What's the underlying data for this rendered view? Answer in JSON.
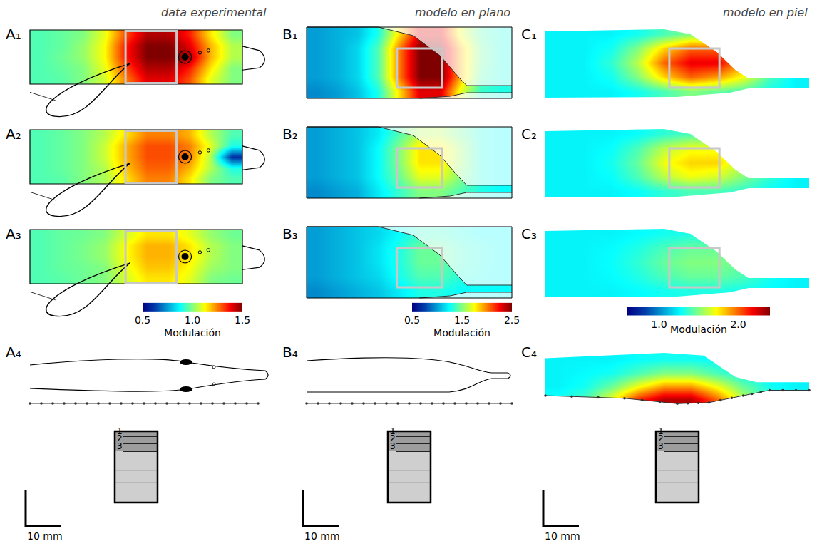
{
  "chart_data": [
    {
      "type": "heatmap",
      "subtitle": "data experimental",
      "color": "Jet",
      "tick_labels": false,
      "colorbar": {
        "title": "Modulación",
        "range": [
          0.5,
          1.5
        ],
        "ticks": [
          0.5,
          {
            "value": 1,
            "label": "1.0"
          },
          1.5
        ]
      },
      "scale_bar": "10 mm",
      "levels": [
        "1",
        "2",
        "3"
      ],
      "panels": [
        {
          "title": "A₁",
          "cells": [
            [
              0.95,
              0.97,
              1.0,
              1.1,
              1.3,
              1.45,
              1.45,
              1.35,
              1.15,
              1.0
            ],
            [
              0.95,
              0.97,
              1.02,
              1.12,
              1.35,
              1.5,
              1.5,
              1.4,
              1.2,
              1.05
            ],
            [
              0.95,
              0.98,
              1.02,
              1.12,
              1.35,
              1.5,
              1.5,
              1.45,
              1.2,
              1.05
            ],
            [
              0.95,
              0.97,
              1.0,
              1.1,
              1.3,
              1.45,
              1.45,
              1.35,
              1.15,
              1.0
            ],
            [
              0.95,
              0.96,
              1.0,
              1.08,
              1.25,
              1.4,
              1.4,
              1.3,
              1.1,
              1.0
            ]
          ]
        },
        {
          "title": "A₂",
          "cells": [
            [
              0.95,
              0.97,
              1.0,
              1.05,
              1.15,
              1.25,
              1.25,
              1.2,
              1.05,
              0.95
            ],
            [
              0.95,
              0.97,
              1.0,
              1.07,
              1.2,
              1.3,
              1.3,
              1.25,
              1.1,
              0.9
            ],
            [
              0.95,
              0.97,
              1.0,
              1.07,
              1.2,
              1.3,
              1.3,
              1.25,
              1.05,
              0.6
            ],
            [
              0.95,
              0.97,
              1.0,
              1.05,
              1.18,
              1.28,
              1.28,
              1.2,
              1.05,
              0.9
            ],
            [
              0.95,
              0.96,
              1.0,
              1.04,
              1.15,
              1.25,
              1.25,
              1.15,
              1.0,
              0.95
            ]
          ]
        },
        {
          "title": "A₃",
          "cells": [
            [
              0.95,
              0.97,
              0.98,
              1.0,
              1.08,
              1.15,
              1.15,
              1.1,
              1.02,
              0.98
            ],
            [
              0.95,
              0.97,
              0.99,
              1.02,
              1.12,
              1.2,
              1.2,
              1.15,
              1.05,
              1.0
            ],
            [
              0.95,
              0.97,
              0.99,
              1.02,
              1.12,
              1.2,
              1.2,
              1.15,
              1.05,
              1.0
            ],
            [
              0.95,
              0.97,
              0.98,
              1.0,
              1.1,
              1.18,
              1.18,
              1.12,
              1.03,
              1.0
            ],
            [
              0.95,
              0.96,
              0.98,
              1.0,
              1.08,
              1.15,
              1.15,
              1.1,
              1.0,
              0.98
            ]
          ]
        },
        {
          "title": "A₄"
        }
      ]
    },
    {
      "type": "heatmap",
      "subtitle": "modelo en plano",
      "color": "Jet",
      "tick_labels": false,
      "colorbar": {
        "title": "Modulación",
        "range": [
          0.5,
          2.5
        ],
        "ticks": [
          0.5,
          1.5,
          2.5
        ]
      },
      "scale_bar": "10 mm",
      "levels": [
        "1",
        "2",
        "3"
      ],
      "panels": [
        {
          "title": "B₁",
          "cells": [
            [
              1.0,
              1.05,
              1.1,
              1.3,
              1.8,
              2.3,
              2.3,
              1.7,
              1.4,
              1.3
            ],
            [
              1.0,
              1.05,
              1.15,
              1.4,
              2.0,
              2.5,
              2.5,
              1.9,
              1.45,
              1.3
            ],
            [
              1.0,
              1.05,
              1.15,
              1.4,
              2.0,
              2.5,
              2.5,
              1.9,
              1.45,
              1.3
            ],
            [
              1.0,
              1.05,
              1.15,
              1.4,
              2.0,
              2.5,
              2.5,
              1.9,
              1.4,
              1.3
            ],
            [
              0.95,
              1.0,
              1.1,
              1.3,
              1.8,
              2.3,
              2.3,
              1.7,
              1.35,
              1.3
            ]
          ]
        },
        {
          "title": "B₂",
          "cells": [
            [
              1.0,
              1.05,
              1.1,
              1.2,
              1.4,
              1.6,
              1.6,
              1.45,
              1.3,
              1.25
            ],
            [
              1.0,
              1.05,
              1.1,
              1.25,
              1.5,
              1.8,
              1.8,
              1.55,
              1.3,
              1.25
            ],
            [
              1.0,
              1.05,
              1.1,
              1.25,
              1.5,
              1.8,
              1.8,
              1.55,
              1.3,
              1.25
            ],
            [
              1.0,
              1.05,
              1.1,
              1.25,
              1.45,
              1.7,
              1.7,
              1.5,
              1.3,
              1.25
            ],
            [
              0.95,
              1.0,
              1.05,
              1.2,
              1.35,
              1.5,
              1.5,
              1.4,
              1.3,
              1.25
            ]
          ]
        },
        {
          "title": "B₃",
          "cells": [
            [
              1.0,
              1.05,
              1.1,
              1.15,
              1.25,
              1.35,
              1.35,
              1.3,
              1.25,
              1.25
            ],
            [
              1.0,
              1.05,
              1.1,
              1.18,
              1.3,
              1.45,
              1.45,
              1.35,
              1.3,
              1.25
            ],
            [
              1.0,
              1.05,
              1.1,
              1.18,
              1.3,
              1.45,
              1.45,
              1.35,
              1.3,
              1.25
            ],
            [
              1.0,
              1.05,
              1.1,
              1.15,
              1.28,
              1.4,
              1.4,
              1.32,
              1.28,
              1.25
            ],
            [
              0.95,
              1.0,
              1.05,
              1.1,
              1.2,
              1.3,
              1.3,
              1.25,
              1.25,
              1.25
            ]
          ]
        },
        {
          "title": "B₄"
        }
      ]
    },
    {
      "type": "heatmap",
      "subtitle": "modelo en piel",
      "color": "Jet",
      "tick_labels": false,
      "colorbar": {
        "title": "Modulación",
        "range": [
          0.6,
          2.4
        ],
        "ticks": [
          {
            "value": 1,
            "label": "1.0"
          },
          {
            "value": 2,
            "label": "2.0"
          }
        ]
      },
      "scale_bar": "10 mm",
      "levels": [
        "1",
        "2",
        "3"
      ],
      "panels": [
        {
          "title": "C₁",
          "cells": [
            [
              1.25,
              1.25,
              1.25,
              1.3,
              1.4,
              1.5,
              1.5,
              1.4,
              1.3,
              1.25
            ],
            [
              1.25,
              1.25,
              1.3,
              1.5,
              1.8,
              2.0,
              2.0,
              1.8,
              1.4,
              1.25
            ],
            [
              1.25,
              1.25,
              1.35,
              1.6,
              2.0,
              2.2,
              2.2,
              1.9,
              1.5,
              1.25
            ],
            [
              1.25,
              1.25,
              1.3,
              1.5,
              1.8,
              2.0,
              1.9,
              1.7,
              1.4,
              1.25
            ],
            [
              1.25,
              1.25,
              1.25,
              1.3,
              1.4,
              1.5,
              1.45,
              1.4,
              1.3,
              1.25
            ]
          ]
        },
        {
          "title": "C₂",
          "cells": [
            [
              1.25,
              1.25,
              1.25,
              1.28,
              1.35,
              1.4,
              1.4,
              1.35,
              1.28,
              1.25
            ],
            [
              1.25,
              1.25,
              1.28,
              1.4,
              1.6,
              1.7,
              1.7,
              1.55,
              1.35,
              1.25
            ],
            [
              1.25,
              1.25,
              1.3,
              1.45,
              1.7,
              1.8,
              1.8,
              1.6,
              1.4,
              1.25
            ],
            [
              1.25,
              1.25,
              1.28,
              1.4,
              1.6,
              1.7,
              1.65,
              1.5,
              1.35,
              1.25
            ],
            [
              1.25,
              1.25,
              1.25,
              1.28,
              1.35,
              1.4,
              1.4,
              1.35,
              1.28,
              1.25
            ]
          ]
        },
        {
          "title": "C₃",
          "cells": [
            [
              1.25,
              1.25,
              1.25,
              1.27,
              1.3,
              1.32,
              1.32,
              1.3,
              1.27,
              1.25
            ],
            [
              1.25,
              1.25,
              1.27,
              1.32,
              1.4,
              1.45,
              1.45,
              1.4,
              1.3,
              1.25
            ],
            [
              1.25,
              1.25,
              1.28,
              1.35,
              1.45,
              1.5,
              1.5,
              1.45,
              1.32,
              1.25
            ],
            [
              1.25,
              1.25,
              1.27,
              1.32,
              1.4,
              1.45,
              1.45,
              1.4,
              1.3,
              1.25
            ],
            [
              1.25,
              1.25,
              1.25,
              1.27,
              1.3,
              1.32,
              1.32,
              1.3,
              1.27,
              1.25
            ]
          ]
        },
        {
          "title": "C₄",
          "cells": [
            [
              1.25,
              1.25,
              1.25,
              1.28,
              1.3,
              1.3,
              1.28,
              1.25,
              1.25,
              1.25
            ],
            [
              1.25,
              1.27,
              1.3,
              1.4,
              1.5,
              1.5,
              1.4,
              1.3,
              1.25,
              1.25
            ],
            [
              1.25,
              1.3,
              1.45,
              1.7,
              1.9,
              1.9,
              1.7,
              1.45,
              1.3,
              1.25
            ],
            [
              1.3,
              1.4,
              1.7,
              2.1,
              2.3,
              2.3,
              2.0,
              1.6,
              1.35,
              1.25
            ]
          ]
        }
      ]
    }
  ]
}
